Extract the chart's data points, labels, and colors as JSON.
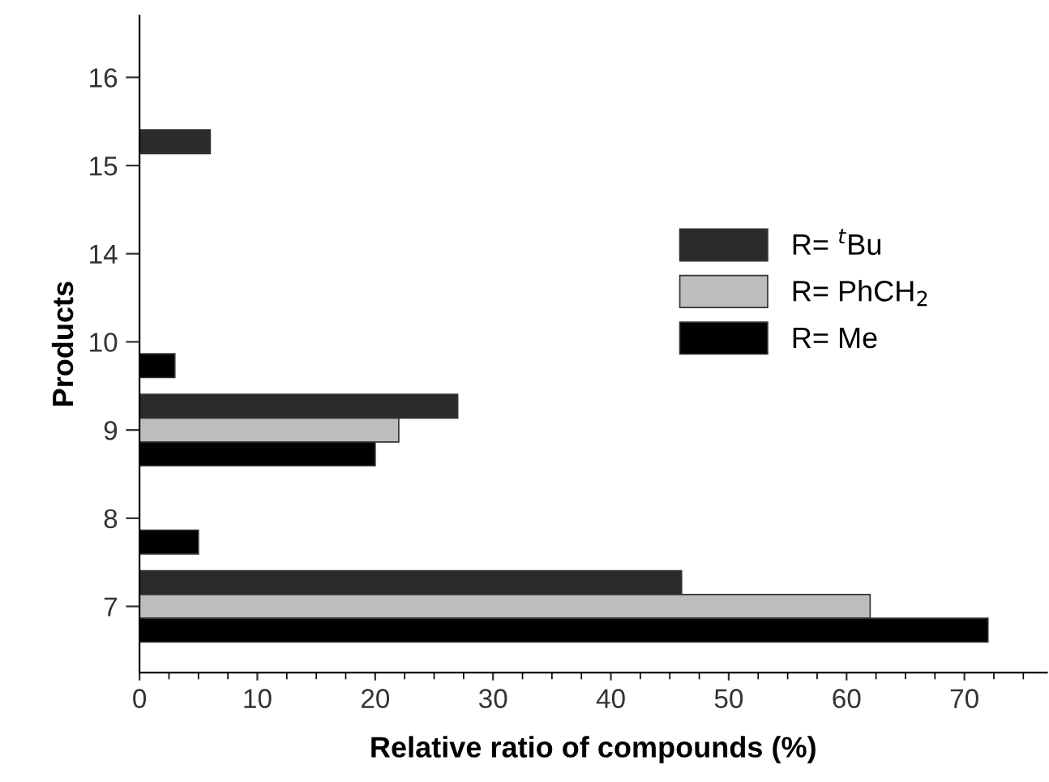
{
  "chart_data": {
    "type": "bar",
    "orientation": "horizontal",
    "xlabel": "Relative ratio of compounds (%)",
    "ylabel": "Products",
    "categories": [
      "16",
      "15",
      "14",
      "10",
      "9",
      "8",
      "7"
    ],
    "series": [
      {
        "name": "R= $^{t}$Bu",
        "color": "#2b2b2b",
        "values": [
          null,
          6,
          null,
          null,
          27,
          null,
          46
        ]
      },
      {
        "name": "R= PhCH$_{2}$",
        "color": "#bdbdbd",
        "values": [
          null,
          null,
          null,
          null,
          22,
          null,
          62
        ]
      },
      {
        "name": "R= Me",
        "color": "#000000",
        "values": [
          null,
          null,
          null,
          3,
          20,
          5,
          72
        ]
      }
    ],
    "xlim": [
      0,
      77
    ],
    "xticks": [
      0,
      10,
      20,
      30,
      40,
      50,
      60,
      70,
      {
        "value": 2.5,
        "label": null
      },
      {
        "value": 5,
        "label": null
      },
      {
        "value": 7.5,
        "label": null
      },
      {
        "value": 12.5,
        "label": null
      },
      {
        "value": 15,
        "label": null
      },
      {
        "value": 17.5,
        "label": null
      },
      {
        "value": 22.5,
        "label": null
      },
      {
        "value": 25,
        "label": null
      },
      {
        "value": 27.5,
        "label": null
      },
      {
        "value": 32.5,
        "label": null
      },
      {
        "value": 35,
        "label": null
      },
      {
        "value": 37.5,
        "label": null
      },
      {
        "value": 42.5,
        "label": null
      },
      {
        "value": 45,
        "label": null
      },
      {
        "value": 47.5,
        "label": null
      },
      {
        "value": 52.5,
        "label": null
      },
      {
        "value": 55,
        "label": null
      },
      {
        "value": 57.5,
        "label": null
      },
      {
        "value": 62.5,
        "label": null
      },
      {
        "value": 65,
        "label": null
      },
      {
        "value": 67.5,
        "label": null
      },
      {
        "value": 72.5,
        "label": null
      },
      {
        "value": 75,
        "label": null
      }
    ],
    "grid": false,
    "legend": "center right"
  }
}
